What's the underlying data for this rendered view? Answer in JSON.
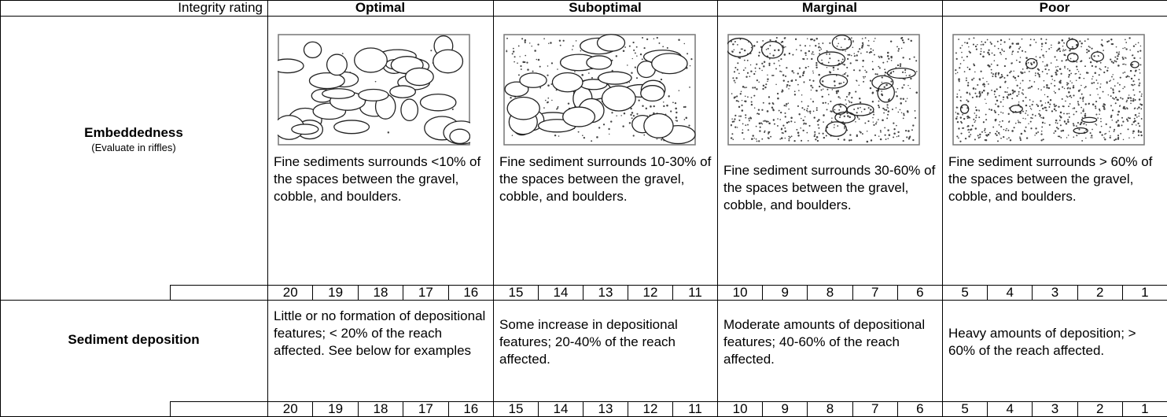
{
  "header": {
    "label": "Integrity rating",
    "categories": [
      "Optimal",
      "Suboptimal",
      "Marginal",
      "Poor"
    ]
  },
  "rows": [
    {
      "name": "Embeddedness",
      "note": "(Evaluate in riffles)",
      "descriptions": [
        "Fine sediments surrounds <10% of the spaces between the gravel, cobble, and boulders.",
        "Fine sediment surrounds 10-30% of the spaces between the gravel, cobble, and boulders.",
        "Fine sediment surrounds 30-60% of the spaces between the gravel, cobble, and boulders.",
        "Fine sediment surrounds > 60% of the spaces between the gravel, cobble, and boulders."
      ],
      "scores": [
        20,
        19,
        18,
        17,
        16,
        15,
        14,
        13,
        12,
        11,
        10,
        9,
        8,
        7,
        6,
        5,
        4,
        3,
        2,
        1
      ]
    },
    {
      "name": "Sediment deposition",
      "descriptions": [
        "Little or no formation of depositional features; < 20% of the reach affected.  See below for examples",
        "Some increase in depositional features; 20-40% of the reach affected.",
        "Moderate amounts of depositional features; 40-60% of the reach affected.",
        "Heavy amounts of deposition; > 60% of the reach affected."
      ],
      "scores": [
        20,
        19,
        18,
        17,
        16,
        15,
        14,
        13,
        12,
        11,
        10,
        9,
        8,
        7,
        6,
        5,
        4,
        3,
        2,
        1
      ]
    }
  ]
}
